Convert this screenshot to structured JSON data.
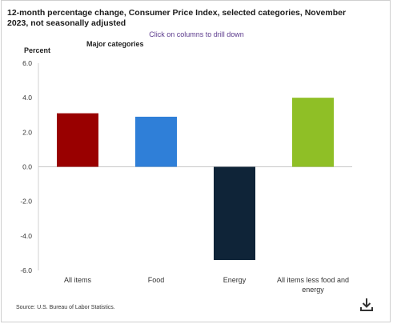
{
  "title": "12-month percentage change, Consumer Price Index, selected categories, November 2023, not seasonally adjusted",
  "drill_hint": "Click on columns to drill down",
  "source": "Source: U.S. Bureau of Labor Statistics.",
  "chart_data": {
    "type": "bar",
    "title": "12-month percentage change, Consumer Price Index, selected categories, November 2023, not seasonally adjusted",
    "ylabel": "Percent",
    "xlabel": "",
    "legend": "Major categories",
    "categories": [
      "All items",
      "Food",
      "Energy",
      "All items less food and energy"
    ],
    "values": [
      3.1,
      2.9,
      -5.4,
      4.0
    ],
    "colors": [
      "#990000",
      "#2f7fd8",
      "#0f2438",
      "#8fbf26"
    ],
    "ylim": [
      -6.0,
      6.0
    ],
    "yticks": [
      "6.0",
      "4.0",
      "2.0",
      "0.0",
      "-2.0",
      "-4.0",
      "-6.0"
    ],
    "grid": false
  },
  "icons": {
    "download": "download-icon"
  }
}
